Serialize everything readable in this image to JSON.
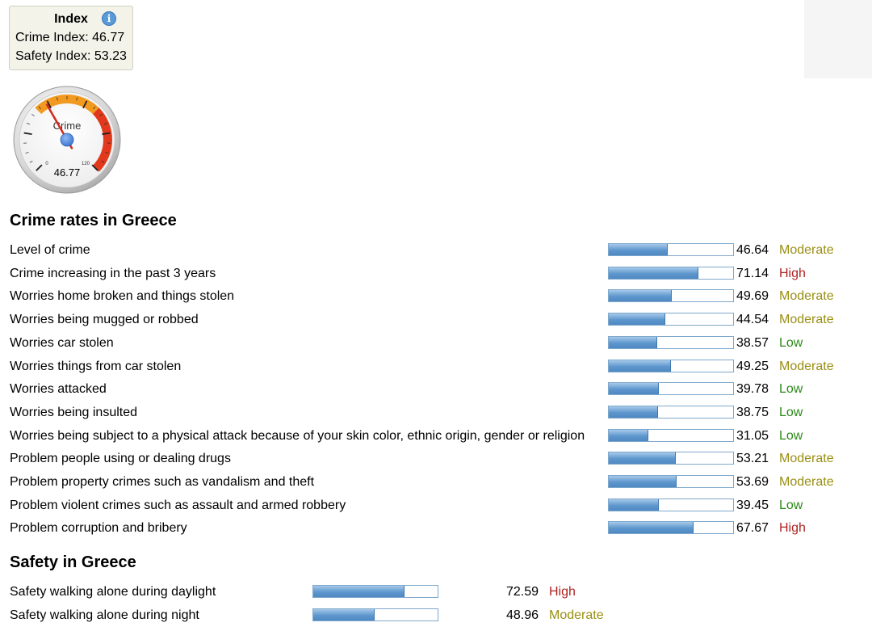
{
  "index_box": {
    "title": "Index",
    "crime_label": "Crime Index:",
    "crime_value": "46.77",
    "safety_label": "Safety Index:",
    "safety_value": "53.23",
    "info_icon": "info-icon"
  },
  "gauge": {
    "label": "Crime",
    "value": 46.77,
    "value_text": "46.77",
    "min_text": "0",
    "max_text": "120",
    "min": 0,
    "max": 120,
    "bands": [
      {
        "from": 40,
        "to": 80,
        "color": "#f29a1f"
      },
      {
        "from": 80,
        "to": 120,
        "color": "#e0391c"
      }
    ]
  },
  "crime_rates": {
    "title": "Crime rates in Greece",
    "items": [
      {
        "label": "Level of crime",
        "value": 46.64,
        "value_text": "46.64",
        "level": "Moderate"
      },
      {
        "label": "Crime increasing in the past 3 years",
        "value": 71.14,
        "value_text": "71.14",
        "level": "High"
      },
      {
        "label": "Worries home broken and things stolen",
        "value": 49.69,
        "value_text": "49.69",
        "level": "Moderate"
      },
      {
        "label": "Worries being mugged or robbed",
        "value": 44.54,
        "value_text": "44.54",
        "level": "Moderate"
      },
      {
        "label": "Worries car stolen",
        "value": 38.57,
        "value_text": "38.57",
        "level": "Low"
      },
      {
        "label": "Worries things from car stolen",
        "value": 49.25,
        "value_text": "49.25",
        "level": "Moderate"
      },
      {
        "label": "Worries attacked",
        "value": 39.78,
        "value_text": "39.78",
        "level": "Low"
      },
      {
        "label": "Worries being insulted",
        "value": 38.75,
        "value_text": "38.75",
        "level": "Low"
      },
      {
        "label": "Worries being subject to a physical attack because of your skin color, ethnic origin, gender or religion",
        "value": 31.05,
        "value_text": "31.05",
        "level": "Low"
      },
      {
        "label": "Problem people using or dealing drugs",
        "value": 53.21,
        "value_text": "53.21",
        "level": "Moderate"
      },
      {
        "label": "Problem property crimes such as vandalism and theft",
        "value": 53.69,
        "value_text": "53.69",
        "level": "Moderate"
      },
      {
        "label": "Problem violent crimes such as assault and armed robbery",
        "value": 39.45,
        "value_text": "39.45",
        "level": "Low"
      },
      {
        "label": "Problem corruption and bribery",
        "value": 67.67,
        "value_text": "67.67",
        "level": "High"
      }
    ]
  },
  "safety": {
    "title": "Safety in Greece",
    "items": [
      {
        "label": "Safety walking alone during daylight",
        "value": 72.59,
        "value_text": "72.59",
        "level": "High"
      },
      {
        "label": "Safety walking alone during night",
        "value": 48.96,
        "value_text": "48.96",
        "level": "Moderate"
      }
    ]
  },
  "colors": {
    "low": "#2b8a18",
    "moderate": "#9a8f12",
    "high": "#b02323",
    "bar_fill": "#5e97cd"
  }
}
